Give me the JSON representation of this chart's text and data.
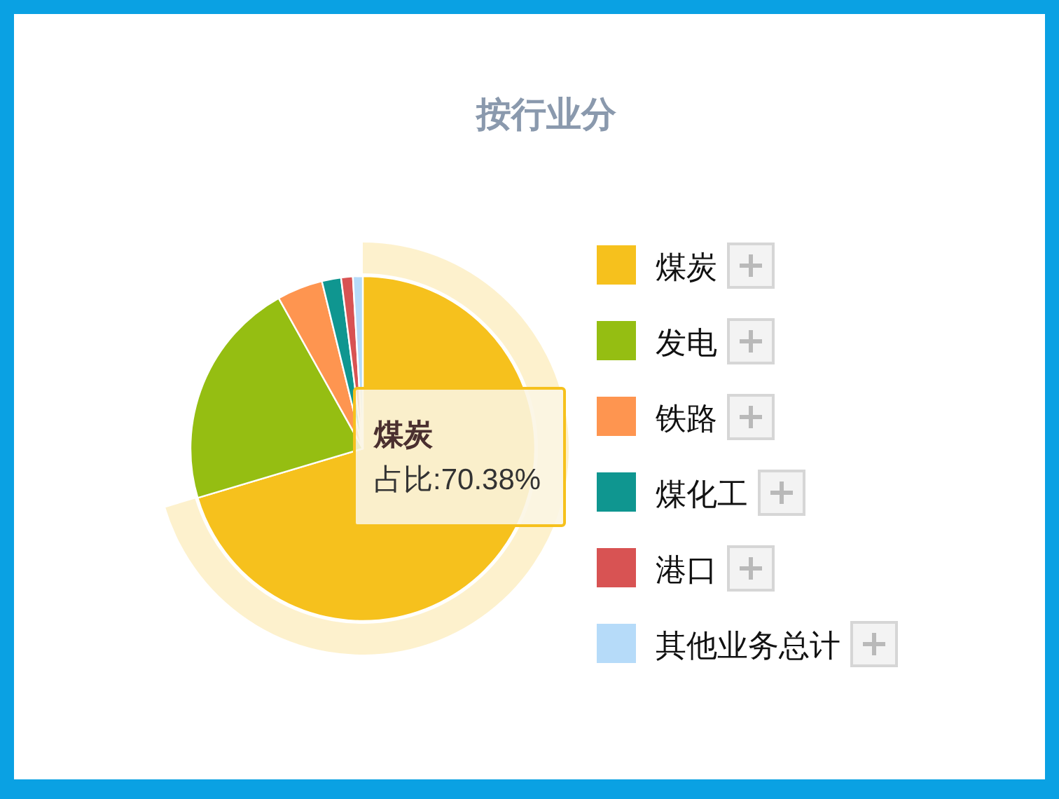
{
  "chart_data": {
    "type": "pie",
    "title": "按行业分",
    "categories": [
      "煤炭",
      "发电",
      "铁路",
      "煤化工",
      "港口",
      "其他业务总计"
    ],
    "values": [
      70.38,
      21.5,
      4.3,
      1.8,
      1.1,
      0.92
    ],
    "colors": [
      "#f6c11d",
      "#95be12",
      "#fe9550",
      "#0f9690",
      "#d85353",
      "#b6dbf9"
    ],
    "value_labels": [
      "占比:70.38%",
      null,
      null,
      null,
      null,
      null
    ],
    "legend": "right"
  }
}
